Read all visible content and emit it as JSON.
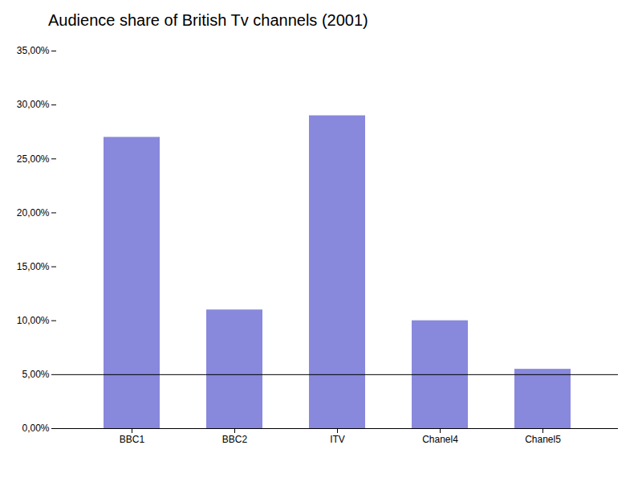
{
  "chart_data": {
    "type": "bar",
    "title": "Audience share of British Tv channels (2001)",
    "categories": [
      "BBC1",
      "BBC2",
      "ITV",
      "Chanel4",
      "Chanel5"
    ],
    "values": [
      0.27,
      0.11,
      0.29,
      0.1,
      0.055
    ],
    "color": "#8888dd",
    "ylim": [
      0,
      0.35
    ],
    "yticks": [
      {
        "value": 0.0,
        "label": "0,00%"
      },
      {
        "value": 0.05,
        "label": "5,00%"
      },
      {
        "value": 0.1,
        "label": "10,00%"
      },
      {
        "value": 0.15,
        "label": "15,00%"
      },
      {
        "value": 0.2,
        "label": "20,00%"
      },
      {
        "value": 0.25,
        "label": "25,00%"
      },
      {
        "value": 0.3,
        "label": "30,00%"
      },
      {
        "value": 0.35,
        "label": "35,00%"
      }
    ],
    "hline": 0.05,
    "grid": false
  }
}
